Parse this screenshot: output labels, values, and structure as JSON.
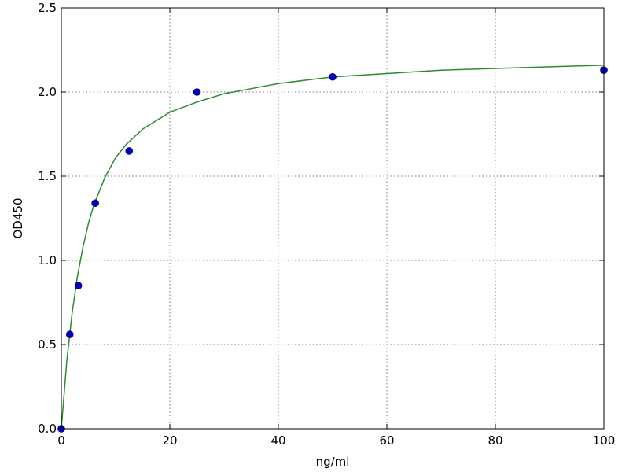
{
  "chart_data": {
    "type": "scatter",
    "xlabel": "ng/ml",
    "ylabel": "OD450",
    "xlim": [
      0,
      100
    ],
    "ylim": [
      0,
      2.5
    ],
    "grid": true,
    "x_ticks": [
      0,
      20,
      40,
      60,
      80,
      100
    ],
    "y_ticks": [
      0.0,
      0.5,
      1.0,
      1.5,
      2.0,
      2.5
    ],
    "x_tick_labels": [
      "0",
      "20",
      "40",
      "60",
      "80",
      "100"
    ],
    "y_tick_labels": [
      "0.0",
      "0.5",
      "1.0",
      "1.5",
      "2.0",
      "2.5"
    ],
    "series": [
      {
        "kind": "points",
        "color": "#0000bf",
        "points": [
          {
            "x": 0,
            "y": 0.0
          },
          {
            "x": 1.56,
            "y": 0.56
          },
          {
            "x": 3.13,
            "y": 0.85
          },
          {
            "x": 6.25,
            "y": 1.34
          },
          {
            "x": 12.5,
            "y": 1.65
          },
          {
            "x": 25,
            "y": 2.0
          },
          {
            "x": 50,
            "y": 2.09
          },
          {
            "x": 100,
            "y": 2.13
          }
        ]
      },
      {
        "kind": "fit-curve",
        "color": "#2e8b2e",
        "points": [
          {
            "x": 0,
            "y": 0.0
          },
          {
            "x": 1,
            "y": 0.4
          },
          {
            "x": 2,
            "y": 0.69
          },
          {
            "x": 3,
            "y": 0.91
          },
          {
            "x": 4,
            "y": 1.08
          },
          {
            "x": 5,
            "y": 1.22
          },
          {
            "x": 6,
            "y": 1.33
          },
          {
            "x": 8,
            "y": 1.49
          },
          {
            "x": 10,
            "y": 1.61
          },
          {
            "x": 12,
            "y": 1.69
          },
          {
            "x": 15,
            "y": 1.78
          },
          {
            "x": 20,
            "y": 1.88
          },
          {
            "x": 25,
            "y": 1.94
          },
          {
            "x": 30,
            "y": 1.99
          },
          {
            "x": 35,
            "y": 2.02
          },
          {
            "x": 40,
            "y": 2.05
          },
          {
            "x": 45,
            "y": 2.07
          },
          {
            "x": 50,
            "y": 2.09
          },
          {
            "x": 60,
            "y": 2.11
          },
          {
            "x": 70,
            "y": 2.13
          },
          {
            "x": 80,
            "y": 2.14
          },
          {
            "x": 90,
            "y": 2.15
          },
          {
            "x": 100,
            "y": 2.16
          }
        ]
      }
    ]
  }
}
